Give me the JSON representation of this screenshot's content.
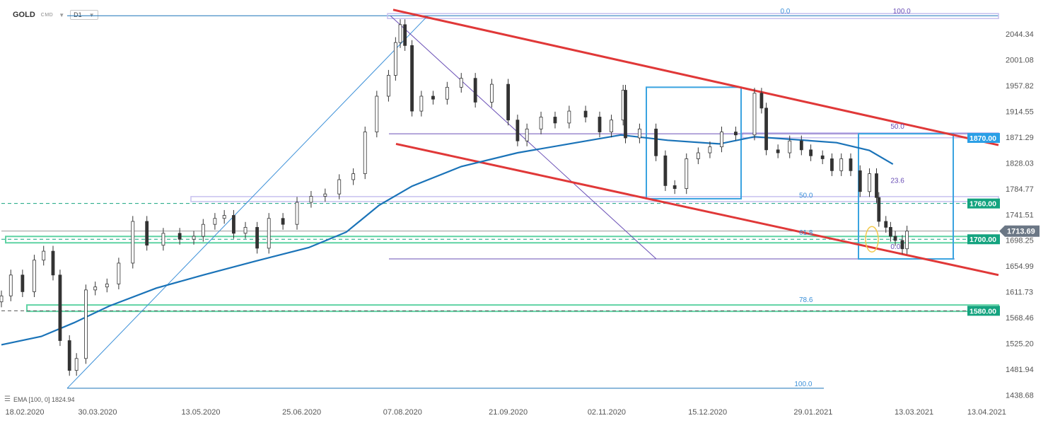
{
  "header": {
    "symbol": "GOLD",
    "symbol_sub": "CMD",
    "timeframe": "D1"
  },
  "indicator_legend": "EMA [100, 0] 1824.94",
  "colors": {
    "candle": "#333333",
    "ema": "#1a73b8",
    "channel": "#e03838",
    "fib_box": "#3aa3e0",
    "fib_purple": "#8c6fd0",
    "tag_blue": "#2b9fe6",
    "tag_green": "#14a37f",
    "tag_price": "#6b7785"
  },
  "chart_data": {
    "type": "candlestick",
    "y_ticks": [
      "2044.34",
      "2001.08",
      "1957.82",
      "1914.55",
      "1871.29",
      "1828.03",
      "1784.77",
      "1741.51",
      "1698.25",
      "1654.99",
      "1611.73",
      "1568.46",
      "1525.20",
      "1481.94",
      "1438.68"
    ],
    "x_ticks": [
      "18.02.2020",
      "30.03.2020",
      "13.05.2020",
      "25.06.2020",
      "07.08.2020",
      "21.09.2020",
      "02.11.2020",
      "15.12.2020",
      "29.01.2021",
      "13.03.2021",
      "13.04.2021"
    ],
    "price_tags": [
      {
        "label": "1870.00",
        "value": 1870.0,
        "style": "blue"
      },
      {
        "label": "1760.00",
        "value": 1760.0,
        "style": "green"
      },
      {
        "label": "1713.69",
        "value": 1713.69,
        "style": "price"
      },
      {
        "label": "1700.00",
        "value": 1700.0,
        "style": "green"
      },
      {
        "label": "1580.00",
        "value": 1580.0,
        "style": "green"
      }
    ],
    "fib_labels": [
      {
        "label": "0.0",
        "value": 2075.0,
        "date": "2021-01-15",
        "color": "blue"
      },
      {
        "label": "100.0",
        "value": 2075.0,
        "date": "2021-03-04",
        "color": "purple"
      },
      {
        "label": "50.0",
        "value": 1882.0,
        "date": "2021-03-03",
        "color": "purple"
      },
      {
        "label": "23.6",
        "value": 1791.0,
        "date": "2021-03-03",
        "color": "purple"
      },
      {
        "label": "50.0",
        "value": 1766.0,
        "date": "2021-01-23",
        "color": "blue"
      },
      {
        "label": "61.8",
        "value": 1704.0,
        "date": "2021-01-23",
        "color": "blue"
      },
      {
        "label": "0.0",
        "value": 1680.0,
        "date": "2021-03-03",
        "color": "purple"
      },
      {
        "label": "78.6",
        "value": 1591.0,
        "date": "2021-01-23",
        "color": "blue"
      },
      {
        "label": "100.0",
        "value": 1450.0,
        "date": "2021-01-21",
        "color": "blue"
      }
    ],
    "ema_points": [
      [
        "2020-02-18",
        1523
      ],
      [
        "2020-03-06",
        1537
      ],
      [
        "2020-03-20",
        1560
      ],
      [
        "2020-04-04",
        1588
      ],
      [
        "2020-04-24",
        1618
      ],
      [
        "2020-05-14",
        1640
      ],
      [
        "2020-06-05",
        1663
      ],
      [
        "2020-06-28",
        1686
      ],
      [
        "2020-07-14",
        1712
      ],
      [
        "2020-07-28",
        1757
      ],
      [
        "2020-08-11",
        1789
      ],
      [
        "2020-09-01",
        1822
      ],
      [
        "2020-09-25",
        1845
      ],
      [
        "2020-10-20",
        1862
      ],
      [
        "2020-11-08",
        1875
      ],
      [
        "2020-11-28",
        1866
      ],
      [
        "2020-12-20",
        1860
      ],
      [
        "2021-01-04",
        1872
      ],
      [
        "2021-01-22",
        1867
      ],
      [
        "2021-02-08",
        1862
      ],
      [
        "2021-02-22",
        1849
      ],
      [
        "2021-03-04",
        1826
      ]
    ],
    "candles_close": [
      [
        "2020-02-18",
        1605
      ],
      [
        "2020-02-22",
        1640
      ],
      [
        "2020-02-27",
        1612
      ],
      [
        "2020-03-03",
        1665
      ],
      [
        "2020-03-07",
        1680
      ],
      [
        "2020-03-11",
        1640
      ],
      [
        "2020-03-14",
        1530
      ],
      [
        "2020-03-18",
        1480
      ],
      [
        "2020-03-21",
        1500
      ],
      [
        "2020-03-25",
        1615
      ],
      [
        "2020-03-29",
        1620
      ],
      [
        "2020-04-03",
        1625
      ],
      [
        "2020-04-08",
        1660
      ],
      [
        "2020-04-14",
        1730
      ],
      [
        "2020-04-20",
        1690
      ],
      [
        "2020-04-27",
        1710
      ],
      [
        "2020-05-04",
        1700
      ],
      [
        "2020-05-10",
        1705
      ],
      [
        "2020-05-14",
        1725
      ],
      [
        "2020-05-19",
        1735
      ],
      [
        "2020-05-23",
        1740
      ],
      [
        "2020-05-27",
        1710
      ],
      [
        "2020-06-01",
        1720
      ],
      [
        "2020-06-06",
        1685
      ],
      [
        "2020-06-11",
        1735
      ],
      [
        "2020-06-17",
        1725
      ],
      [
        "2020-06-23",
        1762
      ],
      [
        "2020-06-29",
        1772
      ],
      [
        "2020-07-05",
        1776
      ],
      [
        "2020-07-11",
        1800
      ],
      [
        "2020-07-17",
        1810
      ],
      [
        "2020-07-22",
        1880
      ],
      [
        "2020-07-27",
        1940
      ],
      [
        "2020-08-01",
        1975
      ],
      [
        "2020-08-04",
        2030
      ],
      [
        "2020-08-06",
        2060
      ],
      [
        "2020-08-08",
        2025
      ],
      [
        "2020-08-11",
        1915
      ],
      [
        "2020-08-15",
        1940
      ],
      [
        "2020-08-20",
        1935
      ],
      [
        "2020-08-26",
        1955
      ],
      [
        "2020-09-01",
        1970
      ],
      [
        "2020-09-07",
        1930
      ],
      [
        "2020-09-14",
        1960
      ],
      [
        "2020-09-21",
        1900
      ],
      [
        "2020-09-25",
        1865
      ],
      [
        "2020-09-29",
        1885
      ],
      [
        "2020-10-05",
        1905
      ],
      [
        "2020-10-11",
        1895
      ],
      [
        "2020-10-17",
        1915
      ],
      [
        "2020-10-24",
        1905
      ],
      [
        "2020-10-30",
        1880
      ],
      [
        "2020-11-04",
        1900
      ],
      [
        "2020-11-09",
        1950
      ],
      [
        "2020-11-10",
        1870
      ],
      [
        "2020-11-16",
        1885
      ],
      [
        "2020-11-23",
        1840
      ],
      [
        "2020-11-27",
        1790
      ],
      [
        "2020-12-01",
        1785
      ],
      [
        "2020-12-06",
        1835
      ],
      [
        "2020-12-11",
        1845
      ],
      [
        "2020-12-16",
        1855
      ],
      [
        "2020-12-21",
        1880
      ],
      [
        "2020-12-27",
        1875
      ],
      [
        "2021-01-04",
        1945
      ],
      [
        "2021-01-07",
        1920
      ],
      [
        "2021-01-09",
        1850
      ],
      [
        "2021-01-14",
        1845
      ],
      [
        "2021-01-19",
        1865
      ],
      [
        "2021-01-24",
        1850
      ],
      [
        "2021-01-28",
        1840
      ],
      [
        "2021-02-02",
        1835
      ],
      [
        "2021-02-06",
        1815
      ],
      [
        "2021-02-10",
        1835
      ],
      [
        "2021-02-14",
        1815
      ],
      [
        "2021-02-18",
        1780
      ],
      [
        "2021-02-22",
        1810
      ],
      [
        "2021-02-25",
        1770
      ],
      [
        "2021-02-26",
        1730
      ],
      [
        "2021-03-01",
        1720
      ],
      [
        "2021-03-03",
        1705
      ],
      [
        "2021-03-05",
        1698
      ],
      [
        "2021-03-08",
        1684
      ],
      [
        "2021-03-10",
        1713.69
      ]
    ],
    "y_range": [
      1425,
      2080
    ],
    "x_range": [
      "2020-02-18",
      "2021-04-18"
    ],
    "grid": false
  }
}
